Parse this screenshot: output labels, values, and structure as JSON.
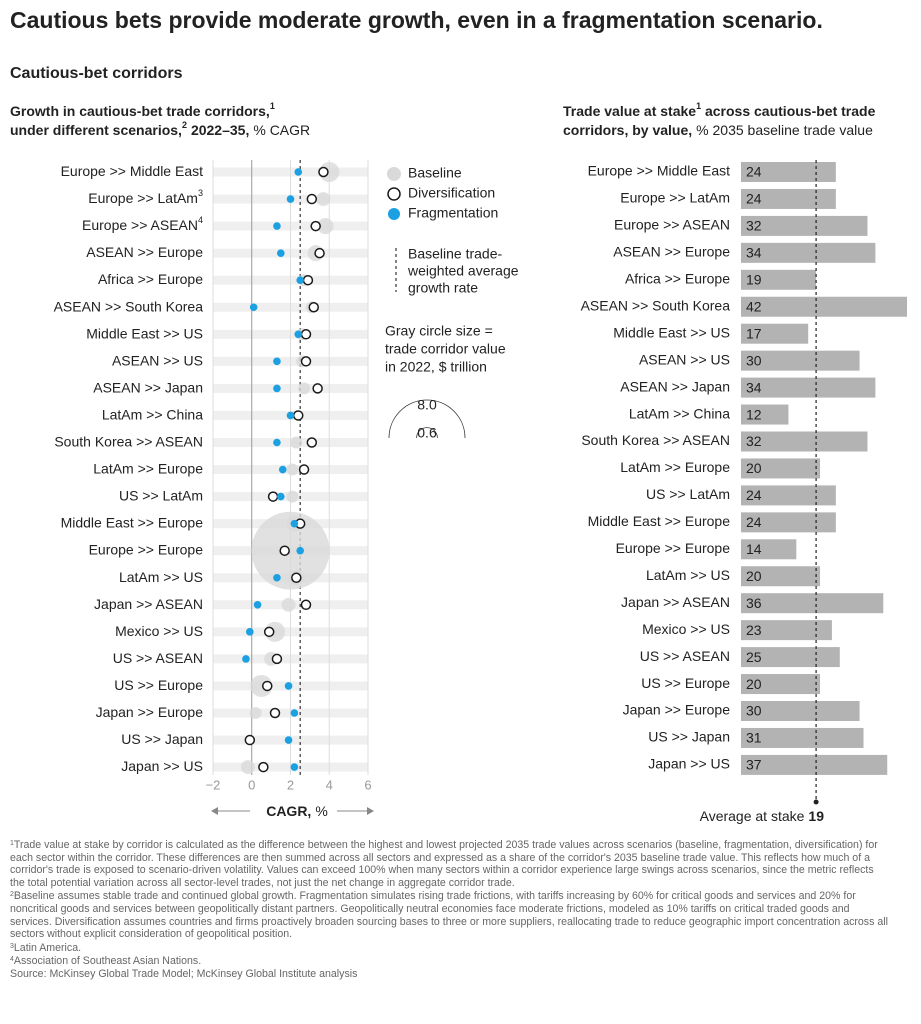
{
  "title": "Cautious bets provide moderate growth, even in a fragmentation scenario.",
  "subtitle": "Cautious-bet corridors",
  "chart_data": [
    {
      "type": "dot",
      "title": {
        "bold1": "Growth in cautious-bet trade corridors,",
        "note1": "1",
        "bold2": "under different scenarios,",
        "note2": "2",
        "bold3": "2022–35,",
        "unit": "% CAGR"
      },
      "categories": [
        "Europe >> Middle East",
        "Europe >> LatAm",
        "Europe >> ASEAN",
        "ASEAN >> Europe",
        "Africa >> Europe",
        "ASEAN >> South Korea",
        "Middle East >> US",
        "ASEAN >> US",
        "ASEAN >> Japan",
        "LatAm >> China",
        "South Korea >> ASEAN",
        "LatAm >> Europe",
        "US >> LatAm",
        "Middle East >> Europe",
        "Europe >> Europe",
        "LatAm >> US",
        "Japan >> ASEAN",
        "Mexico >> US",
        "US >> ASEAN",
        "US >> Europe",
        "Japan >> Europe",
        "US >> Japan",
        "Japan >> US"
      ],
      "category_notes": [
        null,
        "3",
        "4",
        null,
        null,
        null,
        null,
        null,
        null,
        null,
        null,
        null,
        null,
        null,
        null,
        null,
        null,
        null,
        null,
        null,
        null,
        null,
        null
      ],
      "series": [
        {
          "name": "Baseline",
          "color": "#d9d9d9",
          "values": [
            4.0,
            3.7,
            3.8,
            3.3,
            2.7,
            3.1,
            2.6,
            2.6,
            2.7,
            2.3,
            2.3,
            2.1,
            2.1,
            2.2,
            2.0,
            2.3,
            1.9,
            1.2,
            1.0,
            0.5,
            0.2,
            -0.1,
            -0.2
          ],
          "sizes": [
            0.56,
            0.27,
            0.36,
            0.36,
            0.2,
            0.2,
            0.2,
            0.2,
            0.2,
            0.14,
            0.2,
            0.2,
            0.2,
            0.36,
            8.4,
            0.36,
            0.27,
            0.56,
            0.27,
            0.67,
            0.2,
            0.14,
            0.27
          ]
        },
        {
          "name": "Diversification",
          "color": "#1a1a1a",
          "values": [
            3.7,
            3.1,
            3.3,
            3.5,
            2.9,
            3.2,
            2.8,
            2.8,
            3.4,
            2.4,
            3.1,
            2.7,
            1.1,
            2.5,
            1.7,
            2.3,
            2.8,
            0.9,
            1.3,
            0.8,
            1.2,
            -0.1,
            0.6
          ]
        },
        {
          "name": "Fragmentation",
          "color": "#1ba0e2",
          "values": [
            2.4,
            2.0,
            1.3,
            1.5,
            2.5,
            0.1,
            2.4,
            1.3,
            1.3,
            2.0,
            1.3,
            1.6,
            1.5,
            2.2,
            2.5,
            1.3,
            0.3,
            -0.1,
            -0.3,
            1.9,
            2.2,
            1.9,
            2.2
          ]
        }
      ],
      "xlim": [
        -2,
        6
      ],
      "xticks": [
        {
          "value": -2,
          "label": "−2"
        },
        0,
        2,
        4,
        6
      ],
      "x_label": "CAGR,",
      "x_unit": "%",
      "grid": true,
      "reference_line": {
        "value": 2.5,
        "label": [
          "Baseline trade-",
          "weighted average",
          "growth rate"
        ]
      },
      "size_legend": {
        "label": [
          "Gray circle size =",
          "trade corridor value",
          "in 2022, $ trillion"
        ],
        "values": [
          {
            "value": 8,
            "label": "8.0"
          },
          0.6
        ]
      }
    },
    {
      "type": "bar",
      "orientation": "horizontal",
      "title": {
        "bold1": "Trade value at stake",
        "note": "1",
        "bold2": " across cautious-bet trade",
        "bold3": "corridors, by value,",
        "unit": "% 2035 baseline trade value"
      },
      "categories": [
        "Europe >> Middle East",
        "Europe >> LatAm",
        "Europe >> ASEAN",
        "ASEAN >> Europe",
        "Africa >> Europe",
        "ASEAN >> South Korea",
        "Middle East >> US",
        "ASEAN >> US",
        "ASEAN >> Japan",
        "LatAm >> China",
        "South Korea >> ASEAN",
        "LatAm >> Europe",
        "US >> LatAm",
        "Middle East >> Europe",
        "Europe >> Europe",
        "LatAm >> US",
        "Japan >> ASEAN",
        "Mexico >> US",
        "US >> ASEAN",
        "US >> Europe",
        "Japan >> Europe",
        "US >> Japan",
        "Japan >> US"
      ],
      "values": [
        24,
        24,
        32,
        34,
        19,
        42,
        17,
        30,
        34,
        12,
        32,
        20,
        24,
        24,
        14,
        20,
        36,
        23,
        25,
        20,
        30,
        31,
        37
      ],
      "color": "#b3b3b3",
      "average": {
        "label": "Average at stake",
        "value": 19
      }
    }
  ],
  "footnotes": [
    {
      "mark": "1",
      "text": "Trade value at stake by corridor is calculated as the difference between the highest and lowest projected 2035 trade values across scenarios (baseline, fragmentation, diversification) for each sector within the corridor. These differences are then summed across all sectors and expressed as a share of the corridor's 2035 baseline trade value. This reflects how much of a corridor's trade is exposed to scenario-driven volatility. Values can exceed 100% when many sectors within a corridor experience large swings across scenarios, since the metric reflects the total potential variation across all sector-level trades, not just the net change in aggregate corridor trade."
    },
    {
      "mark": "2",
      "text": "Baseline assumes stable trade and continued global growth. Fragmentation simulates rising trade frictions, with tariffs increasing by 60% for critical goods and services and 20% for noncritical goods and services between geopolitically distant partners. Geopolitically neutral economies face moderate frictions, modeled as 10% tariffs on critical traded goods and services. Diversification assumes countries and firms proactively broaden sourcing bases to three or more suppliers, reallocating trade to reduce geographic import concentration across all sectors without explicit consideration of geopolitical position."
    },
    {
      "mark": "3",
      "text": "Latin America."
    },
    {
      "mark": "4",
      "text": "Association of Southeast Asian Nations."
    }
  ],
  "source": "Source: McKinsey Global Trade Model; McKinsey Global Institute analysis"
}
